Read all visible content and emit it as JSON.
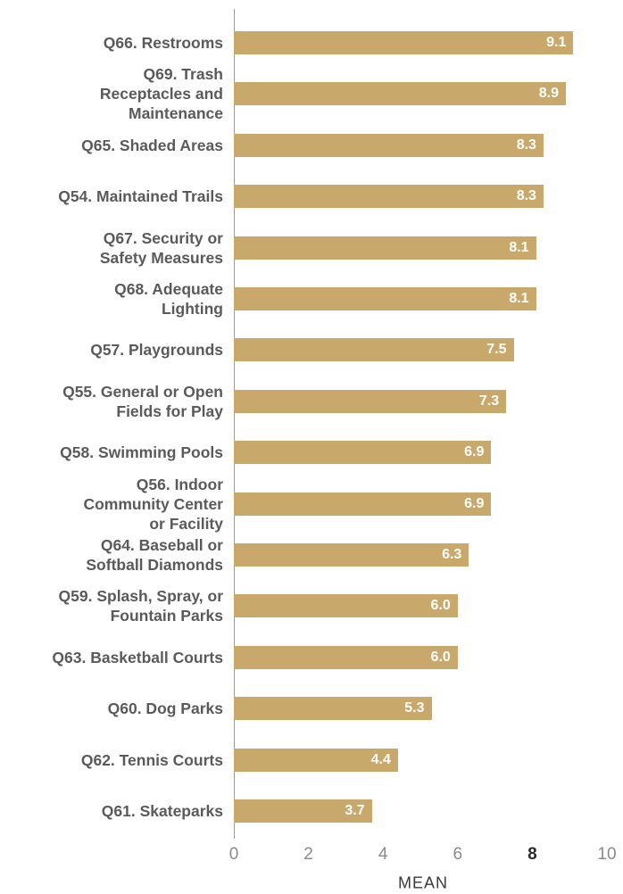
{
  "chart_data": {
    "type": "bar",
    "orientation": "horizontal",
    "categories": [
      "Q66. Restrooms",
      "Q69. Trash\nReceptacles and\nMaintenance",
      "Q65. Shaded Areas",
      "Q54. Maintained Trails",
      "Q67. Security or\nSafety Measures",
      "Q68. Adequate\nLighting",
      "Q57. Playgrounds",
      "Q55. General or Open\nFields for Play",
      "Q58. Swimming Pools",
      "Q56. Indoor\nCommunity Center\nor Facility",
      "Q64. Baseball or\nSoftball Diamonds",
      "Q59. Splash, Spray, or\nFountain Parks",
      "Q63. Basketball Courts",
      "Q60. Dog Parks",
      "Q62. Tennis Courts",
      "Q61. Skateparks"
    ],
    "values": [
      9.1,
      8.9,
      8.3,
      8.3,
      8.1,
      8.1,
      7.5,
      7.3,
      6.9,
      6.9,
      6.3,
      6.0,
      6.0,
      5.3,
      4.4,
      3.7
    ],
    "value_labels": [
      "9.1",
      "8.9",
      "8.3",
      "8.3",
      "8.1",
      "8.1",
      "7.5",
      "7.3",
      "6.9",
      "6.9",
      "6.3",
      "6.0",
      "6.0",
      "5.3",
      "4.4",
      "3.7"
    ],
    "xlabel": "MEAN",
    "ylabel": "",
    "xlim": [
      0,
      10
    ],
    "xticks": [
      "0",
      "2",
      "4",
      "6",
      "8",
      "10"
    ],
    "bold_tick": "8",
    "grid": false,
    "colors": {
      "bar": "#c8a96b",
      "bar_label": "#ffffff",
      "category_label": "#5a5a5a",
      "tick": "#8a8a8a"
    }
  }
}
